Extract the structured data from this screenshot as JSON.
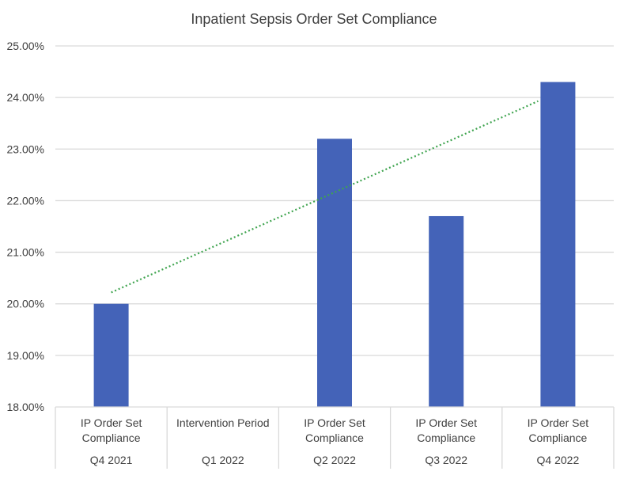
{
  "chart_data": {
    "type": "bar",
    "title": "Inpatient Sepsis Order Set Compliance",
    "categories": [
      {
        "label": [
          "IP Order Set",
          "Compliance"
        ],
        "group": "Q4 2021"
      },
      {
        "label": [
          "Intervention Period"
        ],
        "group": "Q1 2022"
      },
      {
        "label": [
          "IP Order Set",
          "Compliance"
        ],
        "group": "Q2 2022"
      },
      {
        "label": [
          "IP Order Set",
          "Compliance"
        ],
        "group": "Q3 2022"
      },
      {
        "label": [
          "IP Order Set",
          "Compliance"
        ],
        "group": "Q4 2022"
      }
    ],
    "values": [
      20.0,
      null,
      23.2,
      21.7,
      24.3
    ],
    "ylim": [
      18,
      25
    ],
    "yticks": [
      "18.00%",
      "19.00%",
      "20.00%",
      "21.00%",
      "22.00%",
      "23.00%",
      "24.00%",
      "25.00%"
    ],
    "trendline": {
      "type": "linear",
      "style": "dotted",
      "start": 20.22,
      "end": 23.93
    },
    "grid": true,
    "colors": {
      "bar": "#4463B8",
      "trendline": "#3FA44F",
      "grid": "#D9D9D9"
    }
  }
}
